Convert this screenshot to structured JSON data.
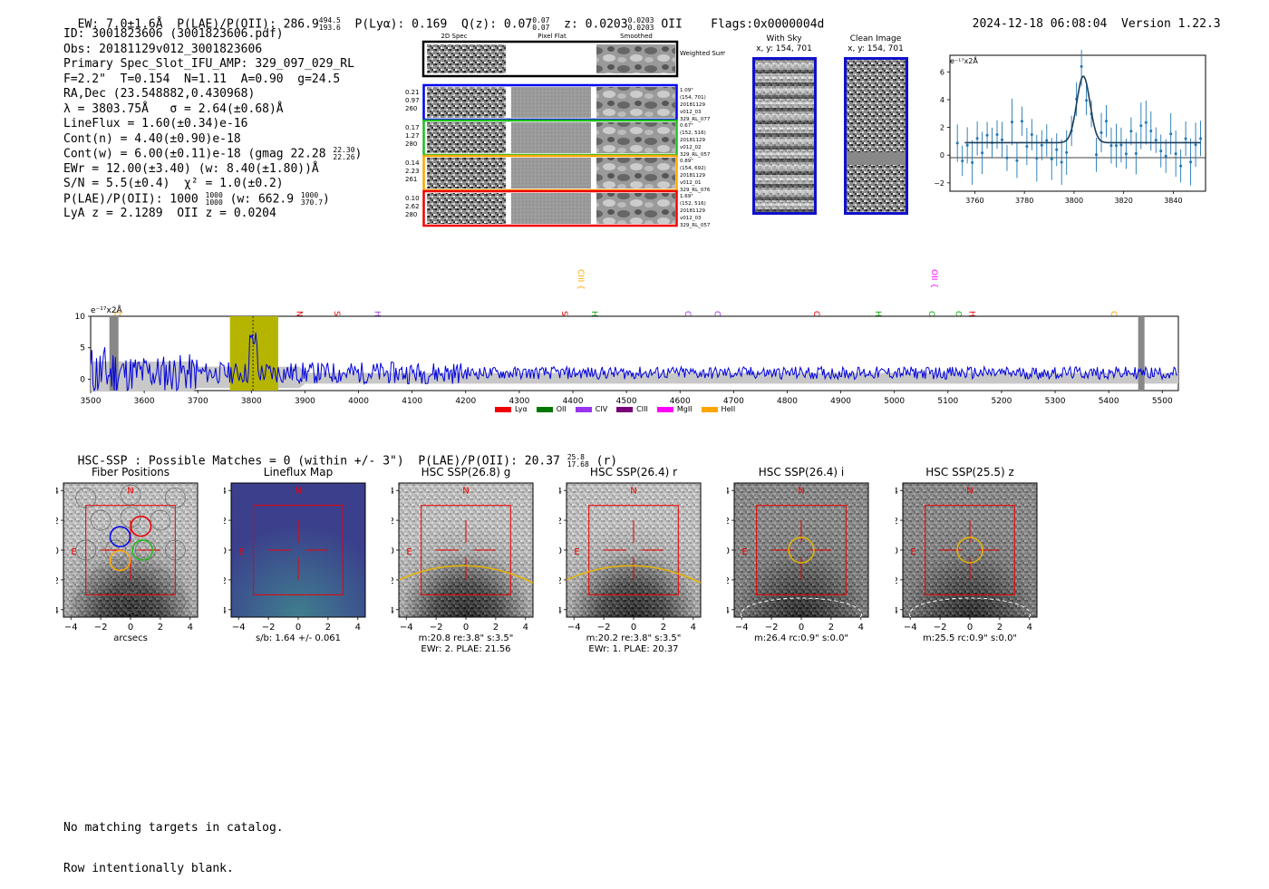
{
  "header": {
    "ew": "EW: 7.0±1.6Å",
    "plae_label": "P(LAE)/P(OII): 286.9",
    "plae_hi": "494.5",
    "plae_lo": "193.6",
    "plya": "P(Lyα): 0.169",
    "q": "Q(z): 0.07",
    "q_hi": "0.07",
    "q_lo": "0.07",
    "z": "z: 0.0203",
    "z_hi": "0.0203",
    "z_lo": "0.0203",
    "z_type": "OII",
    "flags": "Flags:0x0000004d",
    "timestamp": "2024-12-18 06:08:04",
    "version": "Version 1.22.3"
  },
  "info": {
    "id": "ID: 3001823606 (3001823606.pdf)",
    "obs": "Obs: 20181129v012_3001823606",
    "primary": "Primary Spec_Slot_IFU_AMP: 329_097_029_RL",
    "fparams": "F=2.2\"  T=0.154  N=1.11  A=0.90  g=24.5",
    "radec": "RA,Dec (23.548882,0.430968)",
    "lambda": "λ = 3803.75Å   σ = 2.64(±0.68)Å",
    "lineflux": "LineFlux = 1.60(±0.34)e-16",
    "contn": "Cont(n) = 4.40(±0.90)e-18",
    "contw": "Cont(w) = 6.00(±0.11)e-18 (gmag 22.28",
    "gmag_hi": "22.30",
    "gmag_lo": "22.26",
    "ewr": "EWr = 12.00(±3.40) (w: 8.40(±1.80))Å",
    "sn": "S/N = 5.5(±0.4)  χ² = 1.0(±0.2)",
    "plae": "P(LAE)/P(OII): 1000",
    "plae_hi": "1000",
    "plae_lo": "1000",
    "plae_w": "(w: 662.9",
    "plae_w_hi": "1000",
    "plae_w_lo": "370.7",
    "z_line": "LyA z = 2.1289  OII z = 0.0204"
  },
  "cutouts": {
    "col_2d": "2D Spec",
    "col_flat": "Pixel Flat",
    "col_smooth": "Smoothed",
    "weighted": "Weighted Sum",
    "rows": [
      {
        "left": [
          "0.21",
          "0.97",
          "260"
        ],
        "right": [
          "1.09\"",
          "(154, 701)",
          "20181129",
          "v012_03",
          "329_RL_077"
        ],
        "color": "#0000ee"
      },
      {
        "left": [
          "0.17",
          "1.27",
          "280"
        ],
        "right": [
          "0.67\"",
          "(152, 516)",
          "20181129",
          "v012_02",
          "329_RL_057"
        ],
        "color": "#22bb22"
      },
      {
        "left": [
          "0.14",
          "2.23",
          "261"
        ],
        "right": [
          "0.89\"",
          "(154, 692)",
          "20181129",
          "v012_01",
          "329_RL_076"
        ],
        "color": "#ffa500"
      },
      {
        "left": [
          "0.10",
          "2.62",
          "280"
        ],
        "right": [
          "1.69\"",
          "(152, 516)",
          "20181129",
          "v012_03",
          "329_RL_057"
        ],
        "color": "#ee0000"
      }
    ],
    "with_sky": "With Sky",
    "with_sky_xy": "x, y: 154, 701",
    "clean": "Clean Image",
    "clean_xy": "x, y: 154, 701"
  },
  "line_fit": {
    "ylabel": "e⁻¹⁷x2Å",
    "yticks": [
      "6",
      "4",
      "2",
      "0",
      "−2"
    ],
    "xticks": [
      "3760",
      "3780",
      "3800",
      "3820",
      "3840"
    ]
  },
  "spectrum": {
    "ylabel": "e⁻¹⁷x2Å",
    "yticks": [
      "10",
      "5",
      "0"
    ],
    "xticks": [
      "3500",
      "3600",
      "3700",
      "3800",
      "3900",
      "4000",
      "4100",
      "4200",
      "4300",
      "4400",
      "4500",
      "4600",
      "4700",
      "4800",
      "4900",
      "5000",
      "5100",
      "5200",
      "5300",
      "5400",
      "5500"
    ],
    "lines": [
      {
        "name": "CIV",
        "color": "#ffa500",
        "wl": 3540
      },
      {
        "name": "NV",
        "color": "#ee0000",
        "wl": 3880
      },
      {
        "name": "SiII",
        "color": "#ee0000",
        "wl": 3950
      },
      {
        "name": "HeII",
        "color": "#9933ee",
        "wl": 4025
      },
      {
        "name": "SiIV",
        "color": "#ee0000",
        "wl": 4375
      },
      {
        "name": "CIII",
        "color": "#ffa500",
        "wl": 4405
      },
      {
        "name": "Hγ",
        "color": "#00aa00",
        "wl": 4430
      },
      {
        "name": "CII",
        "color": "#9933ee",
        "wl": 4605
      },
      {
        "name": "CIII",
        "color": "#9933ee",
        "wl": 4660
      },
      {
        "name": "CIV",
        "color": "#ee0000",
        "wl": 4845
      },
      {
        "name": "Hβ",
        "color": "#00aa00",
        "wl": 4960
      },
      {
        "name": "OII",
        "color": "#ff00ff",
        "wl": 5065
      },
      {
        "name": "OIII",
        "color": "#00aa00",
        "wl": 5060
      },
      {
        "name": "OIII",
        "color": "#00aa00",
        "wl": 5110
      },
      {
        "name": "HeII",
        "color": "#ee0000",
        "wl": 5135
      },
      {
        "name": "CII",
        "color": "#ffa500",
        "wl": 5400
      }
    ],
    "legend": [
      {
        "label": "Lyα",
        "color": "#ee0000"
      },
      {
        "label": "OII",
        "color": "#007700"
      },
      {
        "label": "CIV",
        "color": "#9933ee"
      },
      {
        "label": "CIII",
        "color": "#770077"
      },
      {
        "label": "MgII",
        "color": "#ff00ff"
      },
      {
        "label": "HeII",
        "color": "#ffa500"
      }
    ]
  },
  "hsc": {
    "title": "HSC-SSP : Possible Matches = 0 (within +/- 3\")  P(LAE)/P(OII): 20.37",
    "title_hi": "25.8",
    "title_lo": "17.68",
    "title_band": "(r)",
    "panels": [
      {
        "title": "Fiber Positions",
        "cap1": "arcsecs",
        "cap2": ""
      },
      {
        "title": "Lineflux Map",
        "cap1": "s/b: 1.64 +/- 0.061",
        "cap2": ""
      },
      {
        "title": "HSC SSP(26.8) g",
        "cap1": "m:20.8  re:3.8\"  s:3.5\"",
        "cap2": "EWr: 2. PLAE: 21.56"
      },
      {
        "title": "HSC SSP(26.4) r",
        "cap1": "m:20.2  re:3.8\"  s:3.5\"",
        "cap2": "EWr: 1. PLAE: 20.37"
      },
      {
        "title": "HSC SSP(26.4) i",
        "cap1": "m:26.4 rc:0.9\"  s:0.0\"",
        "cap2": ""
      },
      {
        "title": "HSC SSP(25.5) z",
        "cap1": "m:25.5 rc:0.9\"  s:0.0\"",
        "cap2": ""
      }
    ],
    "ticks": [
      "4",
      "2",
      "0",
      "−2",
      "−4"
    ],
    "xticks": [
      "−4",
      "−2",
      "0",
      "2",
      "4"
    ],
    "n_label": "N",
    "e_label": "E"
  },
  "footer": {
    "line1": "No matching targets in catalog.",
    "line2": "Row intentionally blank."
  }
}
